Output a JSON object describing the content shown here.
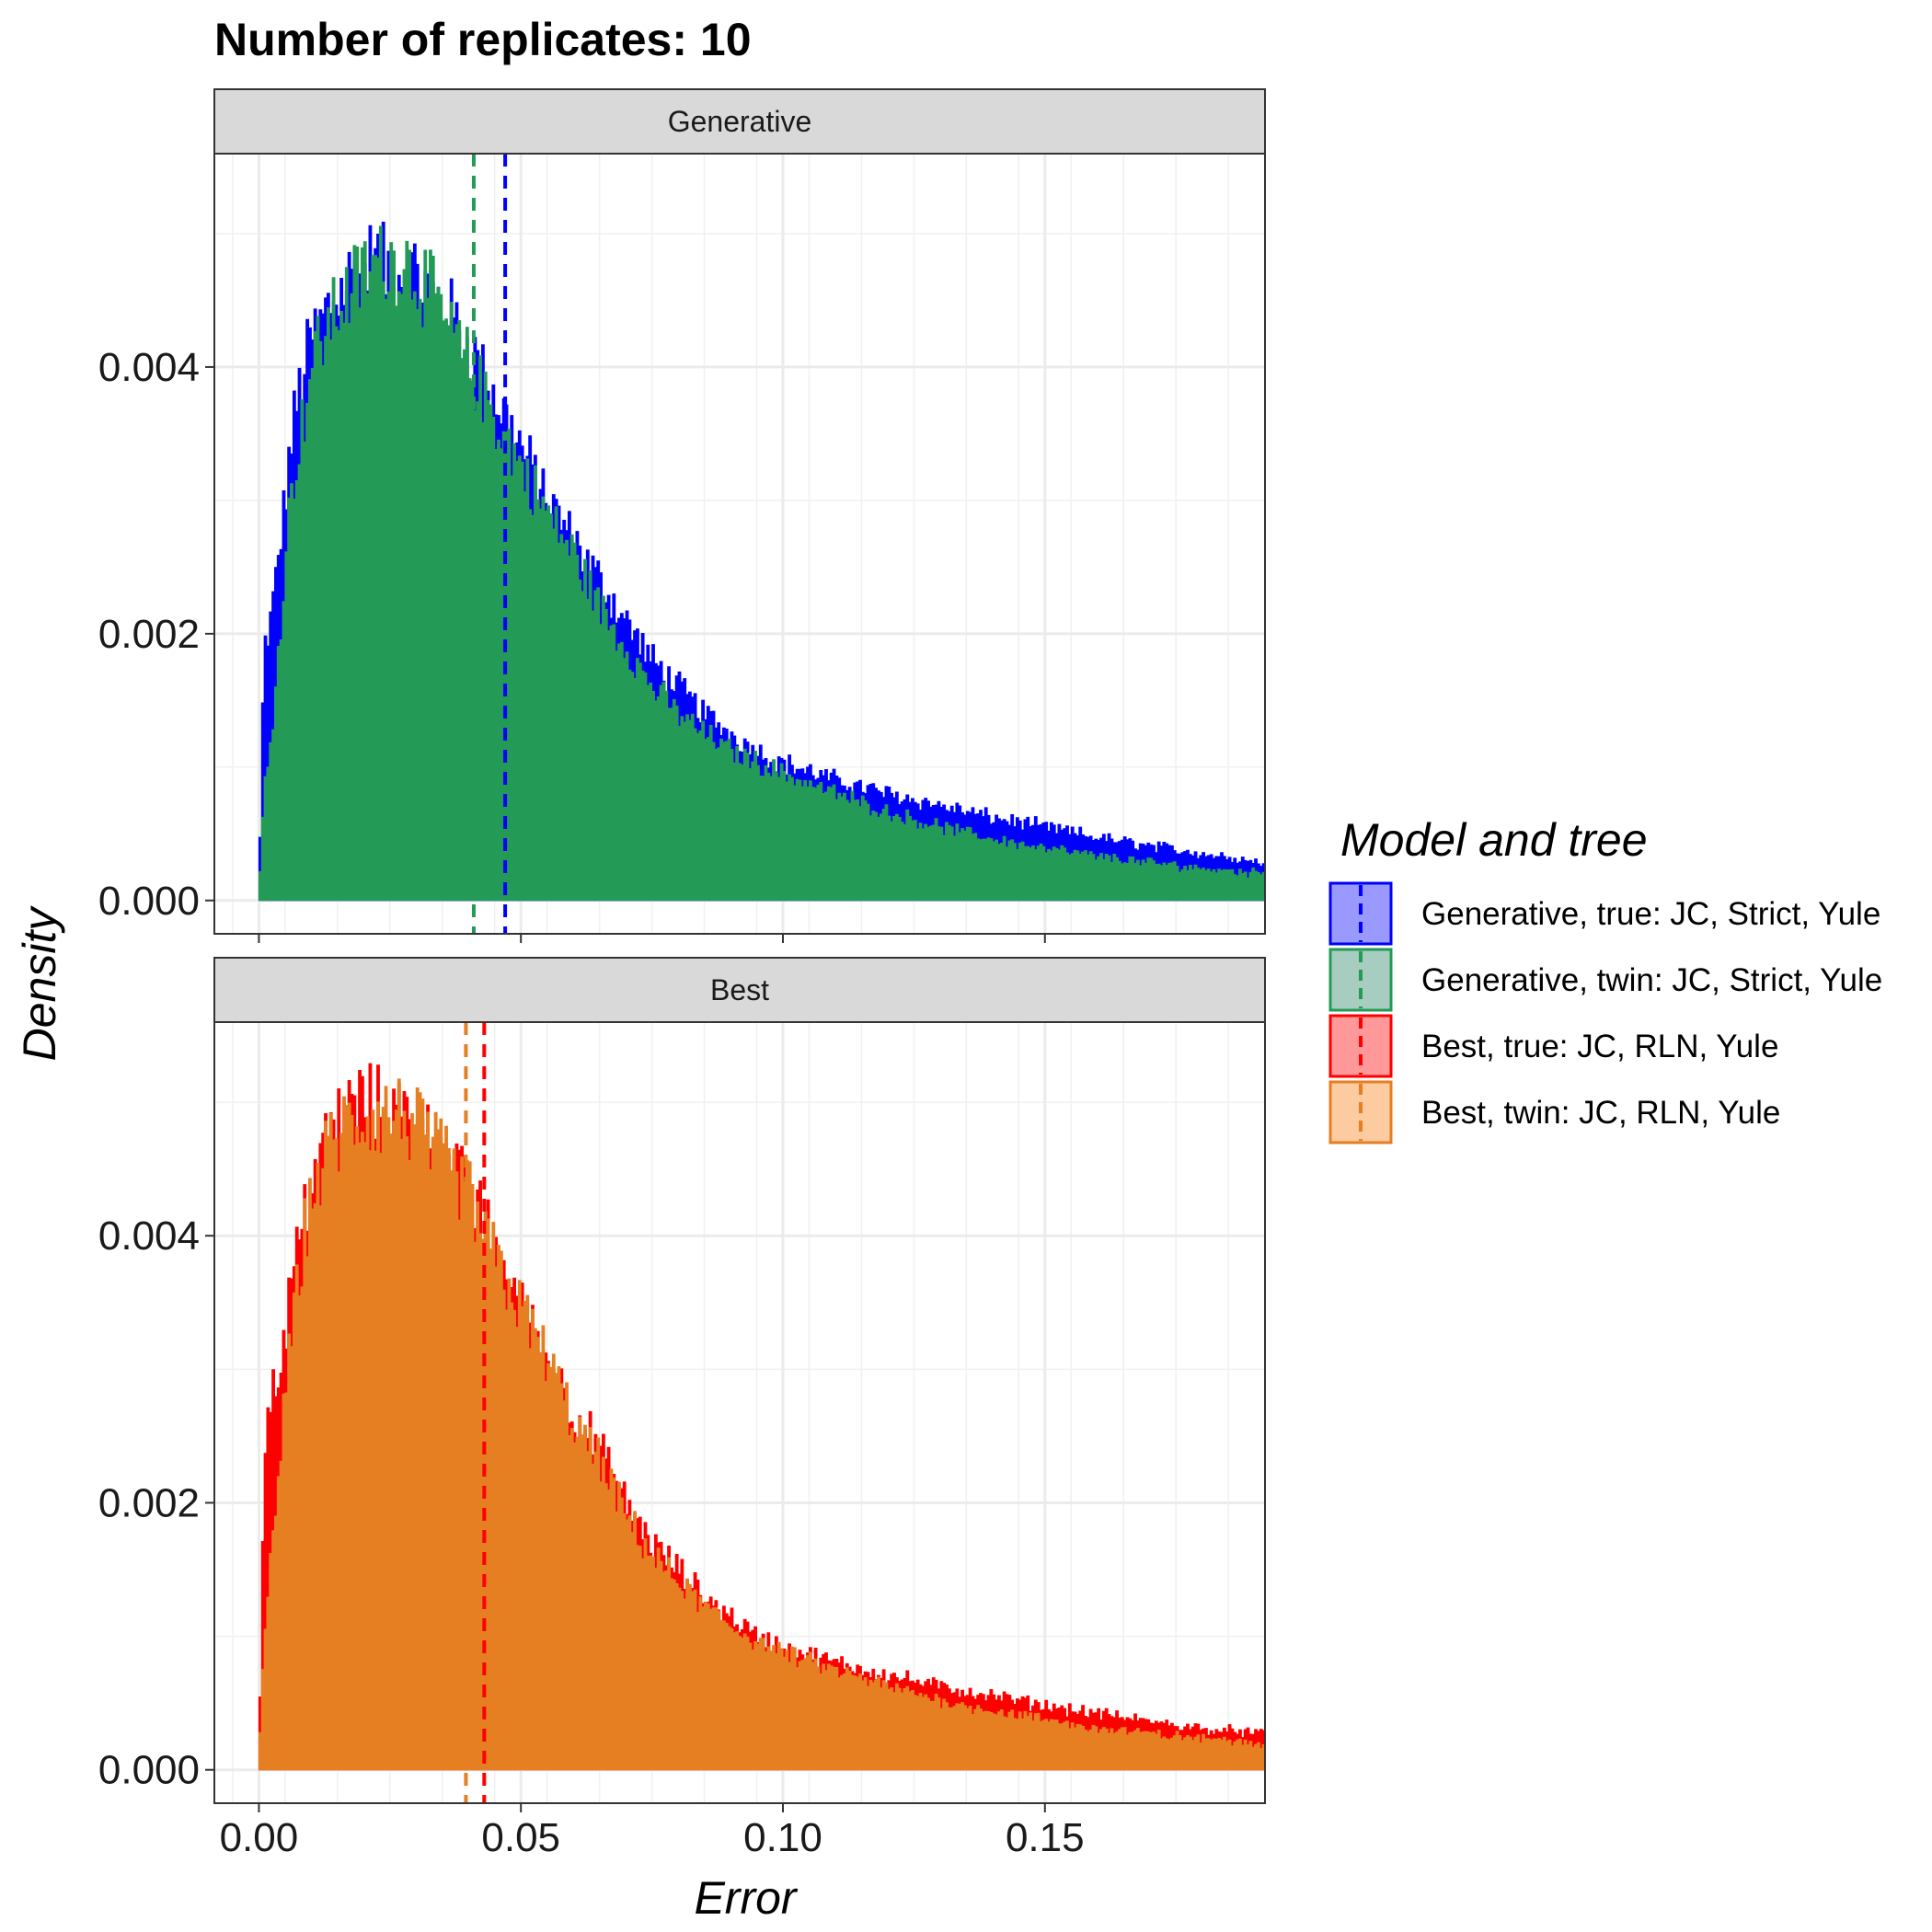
{
  "chart_data": {
    "type": "histogram",
    "title": "Number of replicates:  10",
    "xlabel": "Error",
    "ylabel": "Density",
    "xlim": [
      -0.0085,
      0.192
    ],
    "ylim": [
      -0.00025,
      0.0056
    ],
    "x_ticks": [
      {
        "value": 0.0,
        "label": "0.00"
      },
      {
        "value": 0.05,
        "label": "0.05"
      },
      {
        "value": 0.1,
        "label": "0.10"
      },
      {
        "value": 0.15,
        "label": "0.15"
      }
    ],
    "y_ticks": [
      {
        "value": 0.0,
        "label": "0.000"
      },
      {
        "value": 0.002,
        "label": "0.002"
      },
      {
        "value": 0.004,
        "label": "0.004"
      }
    ],
    "grid": true,
    "legend": {
      "title": "Model and tree",
      "placement": "right",
      "entries": [
        {
          "label": "Generative, true: JC, Strict, Yule",
          "line_color": "#0000ff",
          "fill_color": "#9999ff"
        },
        {
          "label": "Generative, twin: JC, Strict, Yule",
          "line_color": "#239b56",
          "fill_color": "#a7cdc0"
        },
        {
          "label": "Best, true: JC, RLN, Yule",
          "line_color": "#ff0000",
          "fill_color": "#ff9999"
        },
        {
          "label": "Best, twin: JC, RLN, Yule",
          "line_color": "#e67e22",
          "fill_color": "#fccb9f"
        }
      ]
    },
    "histogram_bin_width": 0.0005,
    "density_unit": "density per bin",
    "panels": [
      {
        "strip": "Generative",
        "series": [
          {
            "name": "Generative, true: JC, Strict, Yule",
            "color": "#0000ff",
            "mean": 0.047,
            "profile": [
              [
                0.0,
                0.0
              ],
              [
                0.001,
                0.0019
              ],
              [
                0.002,
                0.002
              ],
              [
                0.0035,
                0.0025
              ],
              [
                0.0045,
                0.0028
              ],
              [
                0.006,
                0.0034
              ],
              [
                0.008,
                0.0039
              ],
              [
                0.01,
                0.0042
              ],
              [
                0.014,
                0.0045
              ],
              [
                0.018,
                0.0047
              ],
              [
                0.022,
                0.0048
              ],
              [
                0.026,
                0.0047
              ],
              [
                0.03,
                0.0047
              ],
              [
                0.034,
                0.0045
              ],
              [
                0.038,
                0.0043
              ],
              [
                0.042,
                0.004
              ],
              [
                0.046,
                0.0037
              ],
              [
                0.05,
                0.0034
              ],
              [
                0.055,
                0.003
              ],
              [
                0.06,
                0.0027
              ],
              [
                0.065,
                0.0024
              ],
              [
                0.07,
                0.0021
              ],
              [
                0.075,
                0.0018
              ],
              [
                0.08,
                0.0016
              ],
              [
                0.085,
                0.0014
              ],
              [
                0.09,
                0.00125
              ],
              [
                0.095,
                0.00112
              ],
              [
                0.1,
                0.00103
              ],
              [
                0.11,
                0.0009
              ],
              [
                0.12,
                0.0008
              ],
              [
                0.13,
                0.00071
              ],
              [
                0.14,
                0.00062
              ],
              [
                0.15,
                0.00055
              ],
              [
                0.16,
                0.00047
              ],
              [
                0.17,
                0.00041
              ],
              [
                0.18,
                0.00035
              ],
              [
                0.192,
                0.00028
              ]
            ]
          },
          {
            "name": "Generative, twin: JC, Strict, Yule",
            "color": "#239b56",
            "mean": 0.041,
            "profile": [
              [
                0.0,
                0.0
              ],
              [
                0.001,
                0.0008
              ],
              [
                0.002,
                0.0011
              ],
              [
                0.003,
                0.0015
              ],
              [
                0.004,
                0.002
              ],
              [
                0.006,
                0.003
              ],
              [
                0.008,
                0.0035
              ],
              [
                0.01,
                0.004
              ],
              [
                0.013,
                0.0043
              ],
              [
                0.016,
                0.0045
              ],
              [
                0.02,
                0.0047
              ],
              [
                0.024,
                0.0048
              ],
              [
                0.028,
                0.0048
              ],
              [
                0.032,
                0.0046
              ],
              [
                0.036,
                0.0043
              ],
              [
                0.04,
                0.004
              ],
              [
                0.044,
                0.0037
              ],
              [
                0.048,
                0.0034
              ],
              [
                0.055,
                0.0029
              ],
              [
                0.06,
                0.0026
              ],
              [
                0.065,
                0.0022
              ],
              [
                0.07,
                0.0019
              ],
              [
                0.075,
                0.0016
              ],
              [
                0.08,
                0.0014
              ],
              [
                0.085,
                0.00125
              ],
              [
                0.09,
                0.00112
              ],
              [
                0.1,
                0.00095
              ],
              [
                0.11,
                0.0008
              ],
              [
                0.12,
                0.00066
              ],
              [
                0.13,
                0.00055
              ],
              [
                0.14,
                0.00046
              ],
              [
                0.15,
                0.00039
              ],
              [
                0.16,
                0.00033
              ],
              [
                0.17,
                0.00028
              ],
              [
                0.18,
                0.00024
              ],
              [
                0.192,
                0.0002
              ]
            ]
          }
        ]
      },
      {
        "strip": "Best",
        "series": [
          {
            "name": "Best, true: JC, RLN, Yule",
            "color": "#ff0000",
            "mean": 0.043,
            "profile": [
              [
                0.0,
                0.0
              ],
              [
                0.001,
                0.0024
              ],
              [
                0.002,
                0.0027
              ],
              [
                0.003,
                0.0029
              ],
              [
                0.0045,
                0.0031
              ],
              [
                0.006,
                0.0036
              ],
              [
                0.008,
                0.004
              ],
              [
                0.01,
                0.0044
              ],
              [
                0.013,
                0.0047
              ],
              [
                0.016,
                0.0049
              ],
              [
                0.02,
                0.005
              ],
              [
                0.024,
                0.0049
              ],
              [
                0.028,
                0.0049
              ],
              [
                0.032,
                0.0047
              ],
              [
                0.036,
                0.0045
              ],
              [
                0.04,
                0.0043
              ],
              [
                0.044,
                0.004
              ],
              [
                0.048,
                0.0036
              ],
              [
                0.052,
                0.0033
              ],
              [
                0.056,
                0.003
              ],
              [
                0.06,
                0.0027
              ],
              [
                0.065,
                0.0024
              ],
              [
                0.07,
                0.002
              ],
              [
                0.075,
                0.0017
              ],
              [
                0.08,
                0.0015
              ],
              [
                0.085,
                0.0013
              ],
              [
                0.09,
                0.00115
              ],
              [
                0.095,
                0.001
              ],
              [
                0.1,
                0.00092
              ],
              [
                0.11,
                0.0008
              ],
              [
                0.12,
                0.00071
              ],
              [
                0.13,
                0.00062
              ],
              [
                0.14,
                0.00055
              ],
              [
                0.15,
                0.00048
              ],
              [
                0.16,
                0.00042
              ],
              [
                0.17,
                0.00036
              ],
              [
                0.18,
                0.00031
              ],
              [
                0.192,
                0.00027
              ]
            ]
          },
          {
            "name": "Best, twin: JC, RLN, Yule",
            "color": "#e67e22",
            "mean": 0.0395,
            "profile": [
              [
                0.0,
                0.0
              ],
              [
                0.001,
                0.001
              ],
              [
                0.002,
                0.0014
              ],
              [
                0.003,
                0.0019
              ],
              [
                0.004,
                0.0023
              ],
              [
                0.006,
                0.0032
              ],
              [
                0.008,
                0.0038
              ],
              [
                0.01,
                0.0043
              ],
              [
                0.013,
                0.0046
              ],
              [
                0.016,
                0.0048
              ],
              [
                0.02,
                0.0049
              ],
              [
                0.024,
                0.0049
              ],
              [
                0.028,
                0.0049
              ],
              [
                0.032,
                0.0047
              ],
              [
                0.036,
                0.0045
              ],
              [
                0.04,
                0.0043
              ],
              [
                0.044,
                0.0039
              ],
              [
                0.048,
                0.0036
              ],
              [
                0.052,
                0.0033
              ],
              [
                0.056,
                0.003
              ],
              [
                0.06,
                0.0026
              ],
              [
                0.065,
                0.0023
              ],
              [
                0.07,
                0.0019
              ],
              [
                0.075,
                0.0016
              ],
              [
                0.08,
                0.0014
              ],
              [
                0.085,
                0.00122
              ],
              [
                0.09,
                0.00107
              ],
              [
                0.095,
                0.00096
              ],
              [
                0.1,
                0.00087
              ],
              [
                0.11,
                0.00074
              ],
              [
                0.12,
                0.00062
              ],
              [
                0.13,
                0.00052
              ],
              [
                0.14,
                0.00044
              ],
              [
                0.15,
                0.00037
              ],
              [
                0.16,
                0.00031
              ],
              [
                0.17,
                0.00027
              ],
              [
                0.18,
                0.00023
              ],
              [
                0.192,
                0.0002
              ]
            ]
          }
        ]
      }
    ]
  }
}
